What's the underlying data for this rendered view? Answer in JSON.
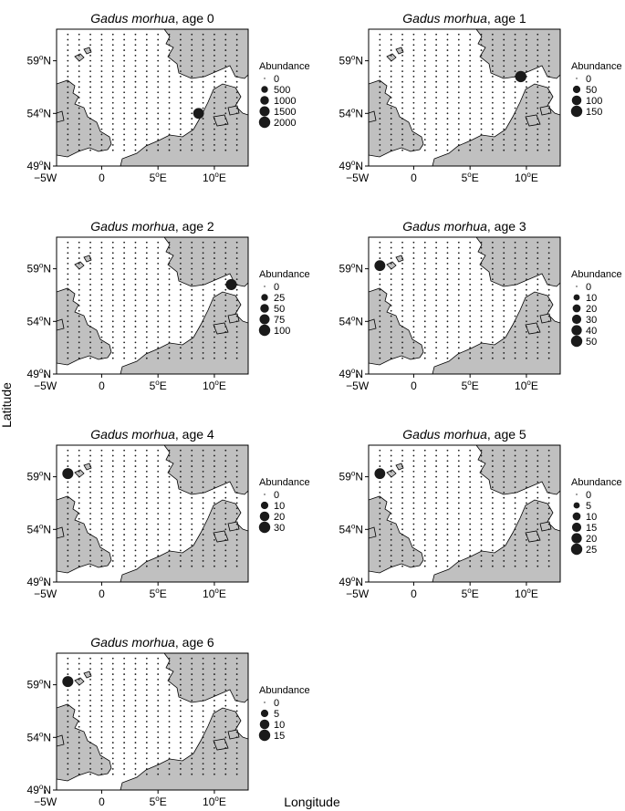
{
  "figure": {
    "xlabel": "Longitude",
    "ylabel": "Latitude"
  },
  "colors": {
    "land": "#c0c0c0",
    "land_stroke": "#000000",
    "sea": "#ffffff",
    "dots": "#1a1a1a"
  },
  "axes": {
    "xticks": [
      {
        "value": -5,
        "label": "−5",
        "unit": "W"
      },
      {
        "value": 0,
        "label": "0",
        "unit": ""
      },
      {
        "value": 5,
        "label": "5",
        "unit": "E",
        "sup": "o"
      },
      {
        "value": 10,
        "label": "10",
        "unit": "E",
        "sup": "o"
      }
    ],
    "yticks": [
      {
        "value": 49,
        "label": "49",
        "unit": "N",
        "sup": "o"
      },
      {
        "value": 54,
        "label": "54",
        "unit": "N",
        "sup": "o"
      },
      {
        "value": 59,
        "label": "59",
        "unit": "N",
        "sup": "o"
      }
    ],
    "xlim": [
      -4,
      13
    ],
    "ylim": [
      49,
      62
    ]
  },
  "chart_data": [
    {
      "type": "scatter",
      "title_species": "Gadus morhua",
      "title_suffix": ", age 0",
      "legend_title": "Abundance",
      "legend": [
        0,
        500,
        1000,
        1500,
        2000
      ],
      "xlim": [
        -4,
        13
      ],
      "ylim": [
        49,
        62
      ],
      "hotspots": [
        {
          "lon": 8.6,
          "lat": 54.0,
          "value": 1800
        }
      ]
    },
    {
      "type": "scatter",
      "title_species": "Gadus morhua",
      "title_suffix": ", age 1",
      "legend_title": "Abundance",
      "legend": [
        0,
        50,
        100,
        150
      ],
      "xlim": [
        -4,
        13
      ],
      "ylim": [
        49,
        62
      ],
      "hotspots": [
        {
          "lon": 9.5,
          "lat": 57.5,
          "value": 150
        }
      ]
    },
    {
      "type": "scatter",
      "title_species": "Gadus morhua",
      "title_suffix": ", age 2",
      "legend_title": "Abundance",
      "legend": [
        0,
        25,
        50,
        75,
        100
      ],
      "xlim": [
        -4,
        13
      ],
      "ylim": [
        49,
        62
      ],
      "hotspots": [
        {
          "lon": 11.5,
          "lat": 57.5,
          "value": 95
        }
      ]
    },
    {
      "type": "scatter",
      "title_species": "Gadus morhua",
      "title_suffix": ", age 3",
      "legend_title": "Abundance",
      "legend": [
        0,
        10,
        20,
        30,
        40,
        50
      ],
      "xlim": [
        -4,
        13
      ],
      "ylim": [
        49,
        62
      ],
      "hotspots": [
        {
          "lon": -3.0,
          "lat": 59.3,
          "value": 45
        }
      ]
    },
    {
      "type": "scatter",
      "title_species": "Gadus morhua",
      "title_suffix": ", age 4",
      "legend_title": "Abundance",
      "legend": [
        0,
        10,
        20,
        30
      ],
      "xlim": [
        -4,
        13
      ],
      "ylim": [
        49,
        62
      ],
      "hotspots": [
        {
          "lon": -3.0,
          "lat": 59.3,
          "value": 28
        }
      ]
    },
    {
      "type": "scatter",
      "title_species": "Gadus morhua",
      "title_suffix": ", age 5",
      "legend_title": "Abundance",
      "legend": [
        0,
        5,
        10,
        15,
        20,
        25
      ],
      "xlim": [
        -4,
        13
      ],
      "ylim": [
        49,
        62
      ],
      "hotspots": [
        {
          "lon": -3.0,
          "lat": 59.3,
          "value": 22
        }
      ]
    },
    {
      "type": "scatter",
      "title_species": "Gadus morhua",
      "title_suffix": ", age 6",
      "legend_title": "Abundance",
      "legend": [
        0,
        5,
        10,
        15
      ],
      "xlim": [
        -4,
        13
      ],
      "ylim": [
        49,
        62
      ],
      "hotspots": [
        {
          "lon": -3.0,
          "lat": 59.3,
          "value": 14
        }
      ]
    }
  ]
}
